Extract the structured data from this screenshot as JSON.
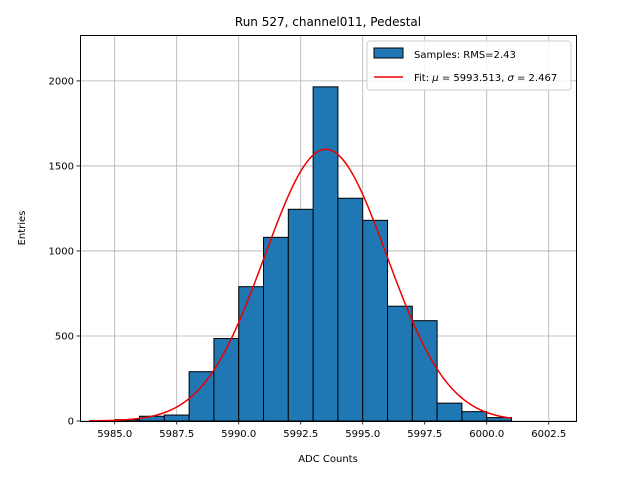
{
  "chart_data": {
    "type": "bar",
    "title": "Run 527, channel011, Pedestal",
    "xlabel": "ADC Counts",
    "ylabel": "Entries",
    "xlim": [
      5983.6,
      6003.6
    ],
    "ylim": [
      0,
      2270
    ],
    "grid": true,
    "legend_position": "top-right",
    "xticks": [
      5985.0,
      5987.5,
      5990.0,
      5992.5,
      5995.0,
      5997.5,
      6000.0,
      6002.5
    ],
    "xtick_labels": [
      "5985.0",
      "5987.5",
      "5990.0",
      "5992.5",
      "5995.0",
      "5997.5",
      "6000.0",
      "6002.5"
    ],
    "yticks": [
      0,
      500,
      1000,
      1500,
      2000
    ],
    "ytick_labels": [
      "0",
      "500",
      "1000",
      "1500",
      "2000"
    ],
    "histogram": {
      "name": "Samples: RMS=2.43",
      "color": "#1f77b4",
      "edge_color": "#000000",
      "bin_edges": [
        5984.0,
        5985.0,
        5986.0,
        5987.0,
        5988.0,
        5989.0,
        5990.0,
        5991.0,
        5992.0,
        5993.0,
        5994.0,
        5995.0,
        5996.0,
        5997.0,
        5998.0,
        5999.0,
        6000.0,
        6001.0
      ],
      "counts": [
        3,
        8,
        28,
        35,
        290,
        485,
        790,
        1080,
        1245,
        1965,
        1310,
        1180,
        675,
        590,
        105,
        55,
        20
      ]
    },
    "fit": {
      "name": "Fit: μ = 5993.513, σ = 2.467",
      "legend_prefix": "Fit: ",
      "legend_mu": "μ",
      "legend_mid": " = 5993.513, ",
      "legend_sigma": "σ",
      "legend_suffix": " = 2.467",
      "color": "#ee0000",
      "mu": 5993.513,
      "sigma": 2.467,
      "amplitude": 1598,
      "x_range": [
        5984.0,
        6001.0
      ]
    }
  }
}
